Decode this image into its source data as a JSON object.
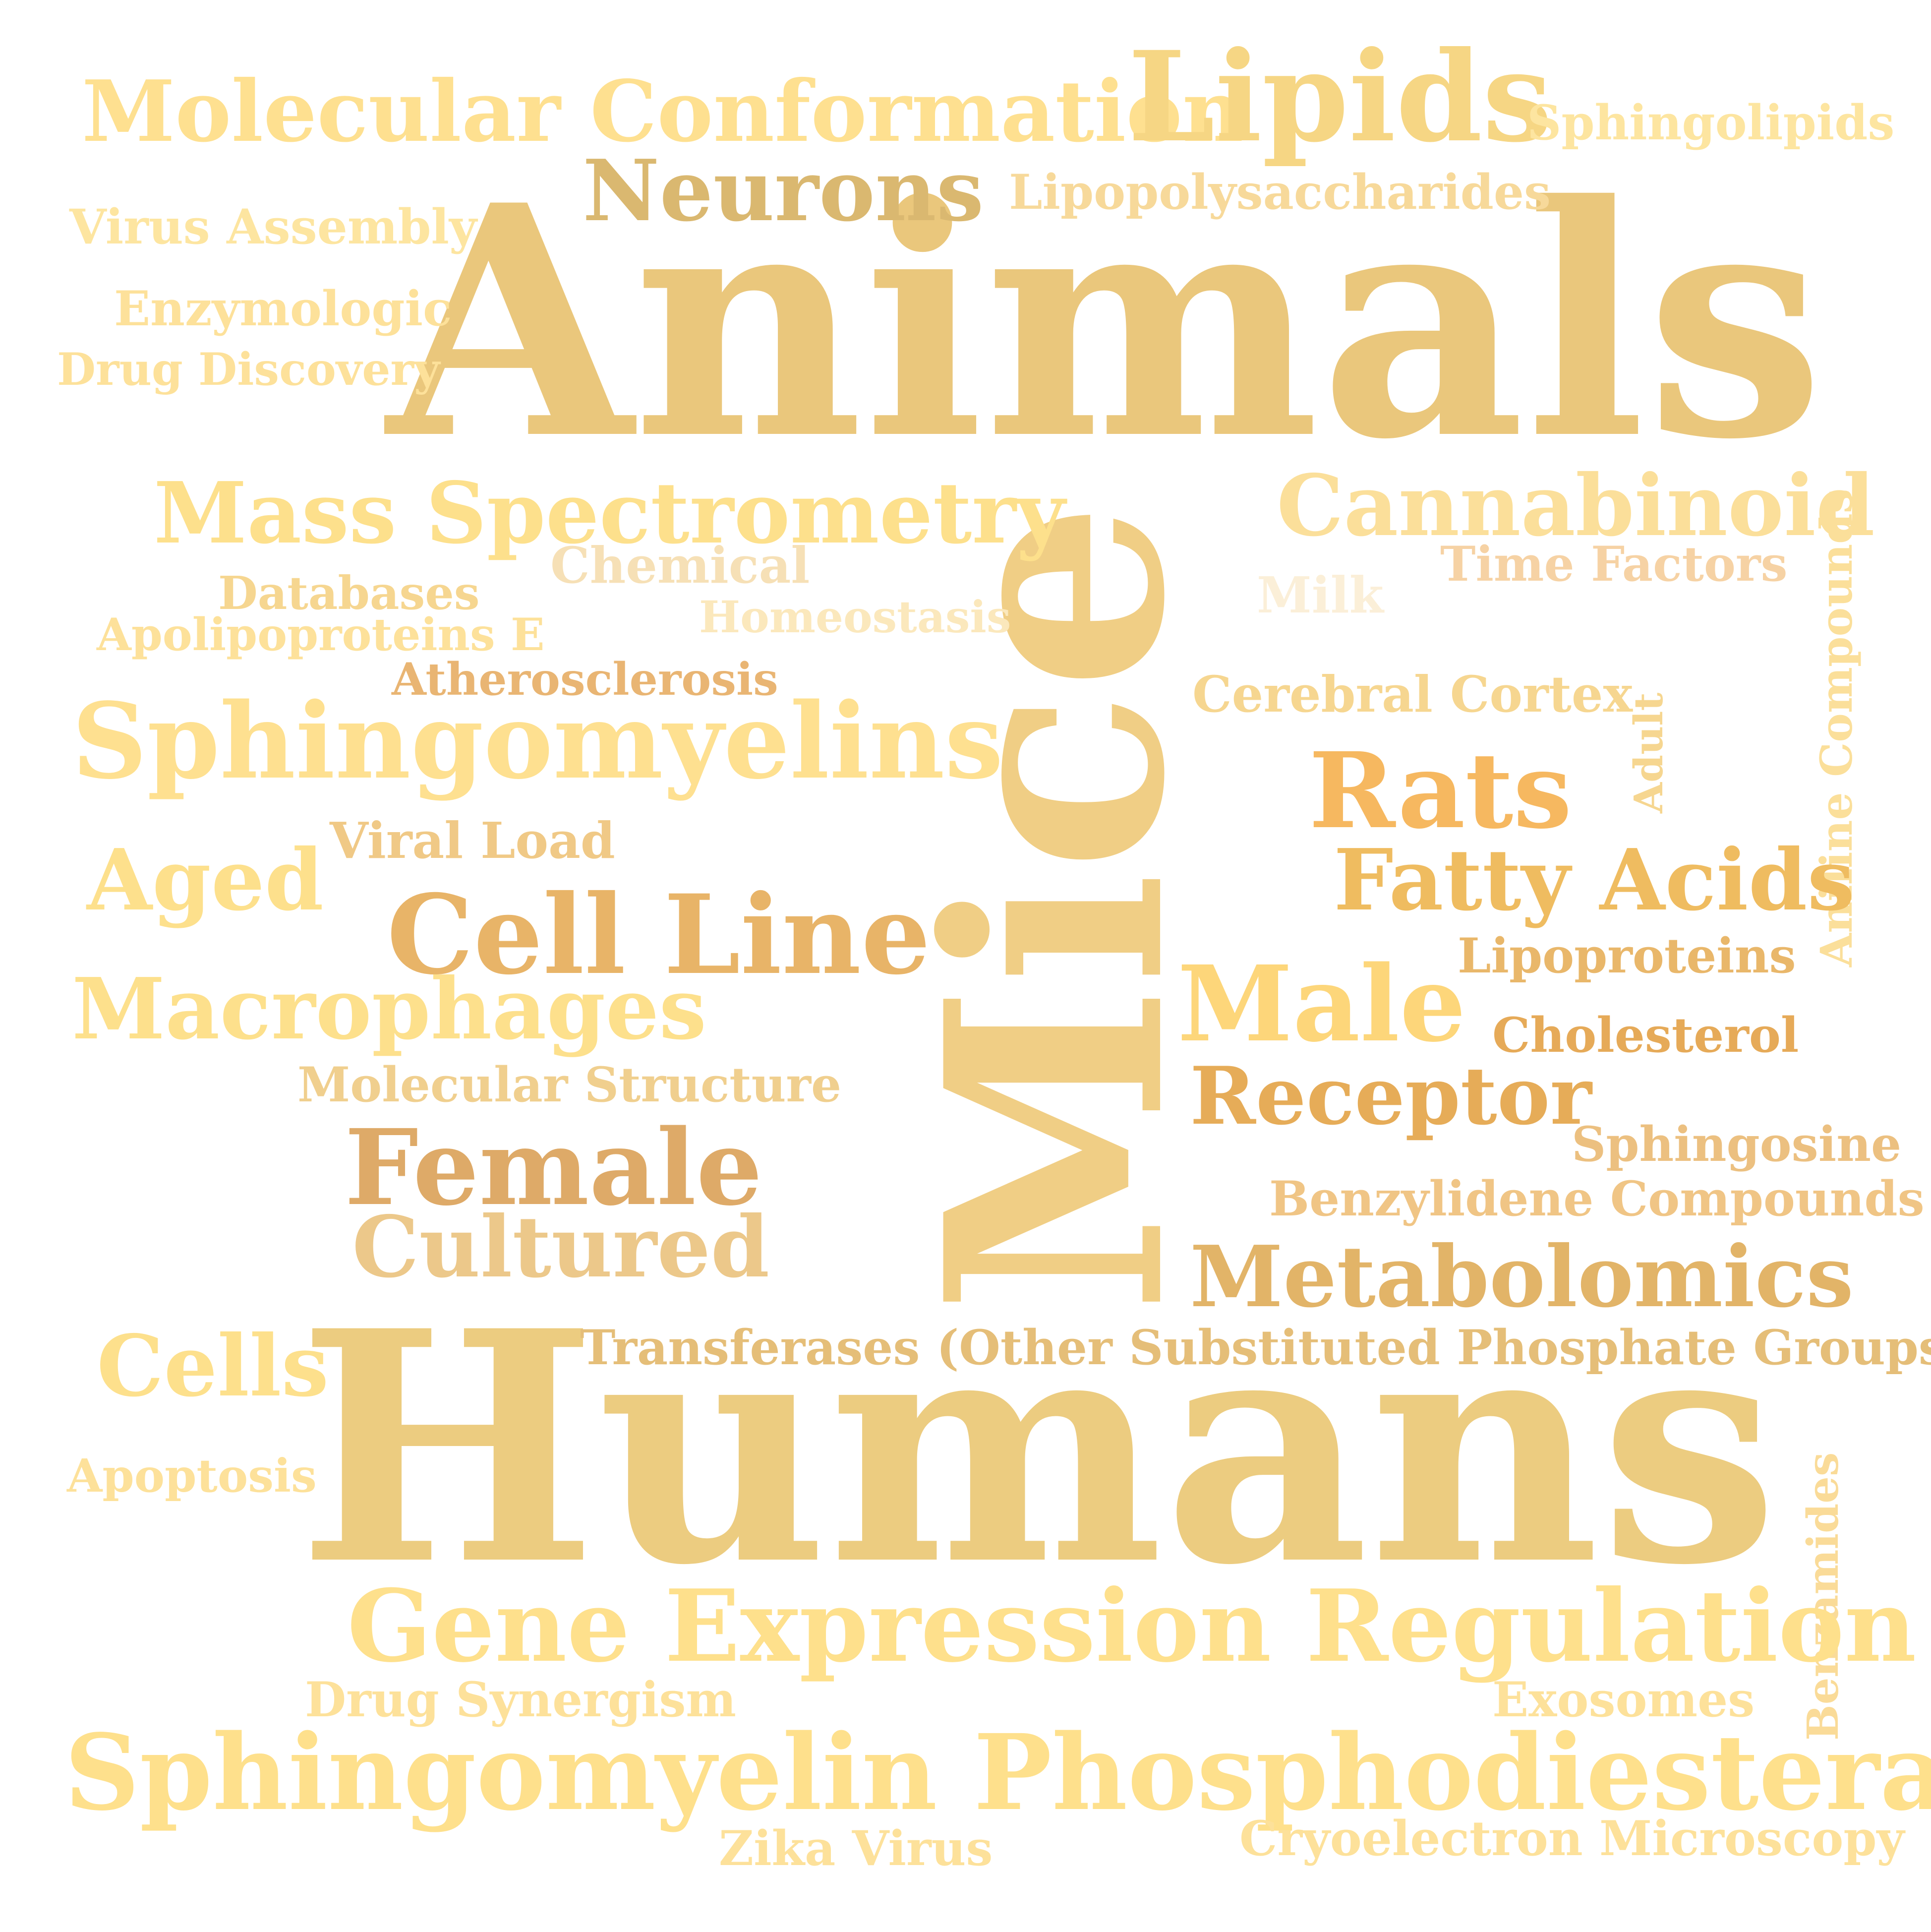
{
  "words": [
    {
      "text": "Animals",
      "color": "#eac77c"
    },
    {
      "text": "Humans",
      "color": "#eccc80"
    },
    {
      "text": "Mice",
      "color": "#f0ce85"
    },
    {
      "text": "Molecular Conformation",
      "color": "#fee090"
    },
    {
      "text": "Lipids",
      "color": "#f6d684"
    },
    {
      "text": "Sphingolipids",
      "color": "#fde5a0"
    },
    {
      "text": "Neurons",
      "color": "#dab870"
    },
    {
      "text": "Lipopolysaccharides",
      "color": "#f7d99a"
    },
    {
      "text": "Virus Assembly",
      "color": "#fde5a0"
    },
    {
      "text": "Enzymologic",
      "color": "#fde19a"
    },
    {
      "text": "Drug Discovery",
      "color": "#fde19a"
    },
    {
      "text": "Mass Spectrometry",
      "color": "#fde08c"
    },
    {
      "text": "Cannabinoid",
      "color": "#fbdf9a"
    },
    {
      "text": "Aniline Compounds",
      "color": "#fbdf9a"
    },
    {
      "text": "Chemical",
      "color": "#f6e0b6"
    },
    {
      "text": "Time Factors",
      "color": "#f6d2a4"
    },
    {
      "text": "Databases",
      "color": "#f6d690"
    },
    {
      "text": "Homeostasis",
      "color": "#fbe8bc"
    },
    {
      "text": "Milk",
      "color": "#fbefd8"
    },
    {
      "text": "Apolipoproteins E",
      "color": "#fde19a"
    },
    {
      "text": "Atherosclerosis",
      "color": "#e9b573"
    },
    {
      "text": "Cerebral Cortex",
      "color": "#f6d690"
    },
    {
      "text": "Adult",
      "color": "#f6d690"
    },
    {
      "text": "Sphingomyelins",
      "color": "#fee090"
    },
    {
      "text": "Rats",
      "color": "#f6b860"
    },
    {
      "text": "Viral Load",
      "color": "#f0c986"
    },
    {
      "text": "Aged",
      "color": "#fde08c"
    },
    {
      "text": "Fatty Acids",
      "color": "#efbc60"
    },
    {
      "text": "Cell Line",
      "color": "#e8b468"
    },
    {
      "text": "Lipoproteins",
      "color": "#e9b76a"
    },
    {
      "text": "Male",
      "color": "#fdd67a"
    },
    {
      "text": "Macrophages",
      "color": "#fde08c"
    },
    {
      "text": "Cholesterol",
      "color": "#e6aa58"
    },
    {
      "text": "Molecular Structure",
      "color": "#f0cf8e"
    },
    {
      "text": "Receptor",
      "color": "#e6ac58"
    },
    {
      "text": "Female",
      "color": "#deaa68"
    },
    {
      "text": "Sphingosine",
      "color": "#ecc080"
    },
    {
      "text": "Benzylidene Compounds",
      "color": "#f0c585"
    },
    {
      "text": "Cultured",
      "color": "#ecc88a"
    },
    {
      "text": "Metabolomics",
      "color": "#e2b468"
    },
    {
      "text": "Cells",
      "color": "#fde08c"
    },
    {
      "text": "Transferases (Other Substituted Phosphate Groups)",
      "color": "#e5be78"
    },
    {
      "text": "Apoptosis",
      "color": "#fde19a"
    },
    {
      "text": "Benzamides",
      "color": "#fadb98"
    },
    {
      "text": "Gene Expression Regulation",
      "color": "#fee08c"
    },
    {
      "text": "Drug Synergism",
      "color": "#fde19a"
    },
    {
      "text": "Exosomes",
      "color": "#fde19a"
    },
    {
      "text": "Sphingomyelin Phosphodiesterase",
      "color": "#fee08c"
    },
    {
      "text": "Zika Virus",
      "color": "#fde19a"
    },
    {
      "text": "Cryoelectron Microscopy",
      "color": "#fde19a"
    }
  ]
}
